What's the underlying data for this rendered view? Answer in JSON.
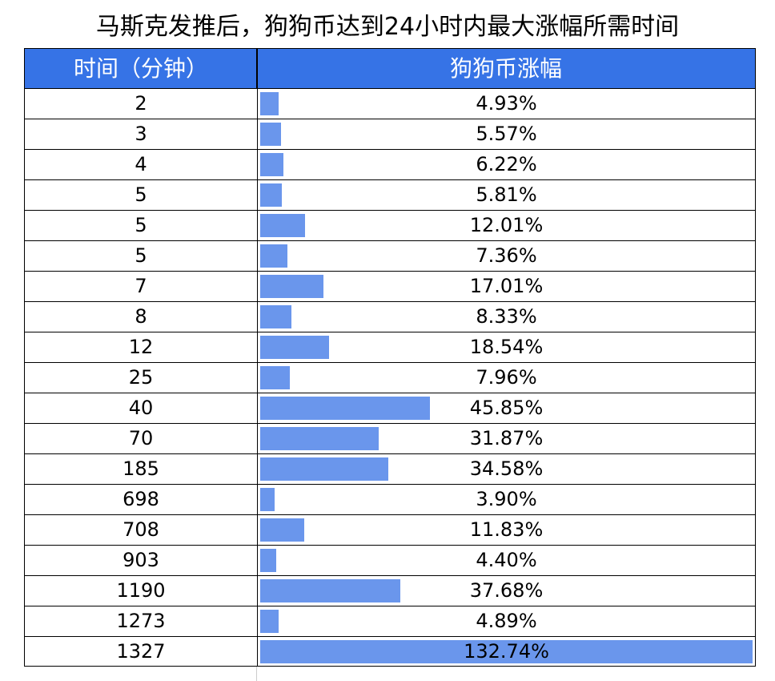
{
  "title": "马斯克发推后，狗狗币达到24小时内最大涨幅所需时间",
  "chart_data": {
    "type": "table",
    "title": "马斯克发推后，狗狗币达到24小时内最大涨幅所需时间",
    "columns": [
      "时间（分钟）",
      "狗狗币涨幅"
    ],
    "rows": [
      {
        "minutes": "2",
        "gain": "4.93%",
        "value": 4.93
      },
      {
        "minutes": "3",
        "gain": "5.57%",
        "value": 5.57
      },
      {
        "minutes": "4",
        "gain": "6.22%",
        "value": 6.22
      },
      {
        "minutes": "5",
        "gain": "5.81%",
        "value": 5.81
      },
      {
        "minutes": "5",
        "gain": "12.01%",
        "value": 12.01
      },
      {
        "minutes": "5",
        "gain": "7.36%",
        "value": 7.36
      },
      {
        "minutes": "7",
        "gain": "17.01%",
        "value": 17.01
      },
      {
        "minutes": "8",
        "gain": "8.33%",
        "value": 8.33
      },
      {
        "minutes": "12",
        "gain": "18.54%",
        "value": 18.54
      },
      {
        "minutes": "25",
        "gain": "7.96%",
        "value": 7.96
      },
      {
        "minutes": "40",
        "gain": "45.85%",
        "value": 45.85
      },
      {
        "minutes": "70",
        "gain": "31.87%",
        "value": 31.87
      },
      {
        "minutes": "185",
        "gain": "34.58%",
        "value": 34.58
      },
      {
        "minutes": "698",
        "gain": "3.90%",
        "value": 3.9
      },
      {
        "minutes": "708",
        "gain": "11.83%",
        "value": 11.83
      },
      {
        "minutes": "903",
        "gain": "4.40%",
        "value": 4.4
      },
      {
        "minutes": "1190",
        "gain": "37.68%",
        "value": 37.68
      },
      {
        "minutes": "1273",
        "gain": "4.89%",
        "value": 4.89
      },
      {
        "minutes": "1327",
        "gain": "132.74%",
        "value": 132.74
      }
    ],
    "bar_max": 132.74,
    "colors": {
      "header": "#3673e6",
      "bar": "#6a96ec"
    }
  }
}
